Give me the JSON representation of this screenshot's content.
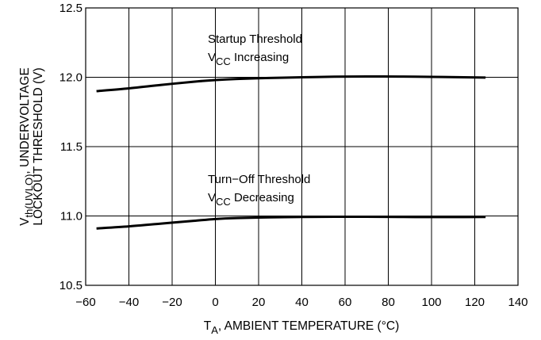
{
  "chart_data": {
    "type": "line",
    "xlabel": {
      "main": "T",
      "sub": "A",
      "rest": ", AMBIENT TEMPERATURE (°C)"
    },
    "ylabel": {
      "line1_main": "V",
      "line1_sub": "th(UVLO)",
      "line1_rest": ", UNDERVOLTAGE",
      "line2": "LOCKOUT THRESHOLD (V)"
    },
    "xlim": [
      -60,
      140
    ],
    "ylim": [
      10.5,
      12.5
    ],
    "xticks": [
      -60,
      -40,
      -20,
      0,
      20,
      40,
      60,
      80,
      100,
      120,
      140
    ],
    "xtick_labels": [
      "−60",
      "−40",
      "−20",
      "0",
      "20",
      "40",
      "60",
      "80",
      "100",
      "120",
      "140"
    ],
    "yticks": [
      10.5,
      11.0,
      11.5,
      12.0,
      12.5
    ],
    "ytick_labels": [
      "10.5",
      "11.0",
      "11.5",
      "12.0",
      "12.5"
    ],
    "grid": true,
    "series": [
      {
        "x": [
          -55,
          -40,
          -25,
          -10,
          0,
          10,
          25,
          40,
          55,
          70,
          85,
          100,
          115,
          125
        ],
        "values": [
          11.9,
          11.92,
          11.945,
          11.968,
          11.98,
          11.988,
          11.995,
          12.0,
          12.004,
          12.006,
          12.005,
          12.003,
          12.0,
          11.998
        ],
        "annotation": {
          "line1": "Startup Threshold",
          "line2_main": "V",
          "line2_sub": "CC",
          "line2_rest": " Increasing"
        }
      },
      {
        "x": [
          -55,
          -40,
          -25,
          -10,
          0,
          10,
          25,
          40,
          55,
          70,
          85,
          100,
          115,
          125
        ],
        "values": [
          10.91,
          10.925,
          10.945,
          10.965,
          10.978,
          10.985,
          10.99,
          10.993,
          10.994,
          10.994,
          10.993,
          10.992,
          10.992,
          10.993
        ],
        "annotation": {
          "line1": "Turn−Off Threshold",
          "line2_main": "V",
          "line2_sub": "CC",
          "line2_rest": " Decreasing"
        }
      }
    ]
  }
}
